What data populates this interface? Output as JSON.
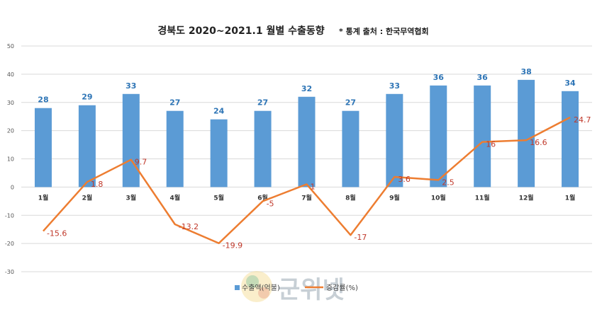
{
  "chart_data": {
    "type": "bar+line",
    "title": "경북도 2020~2021.1 월별 수출동향",
    "source": "* 통계 출처 : 한국무역협회",
    "categories": [
      "1월",
      "2월",
      "3월",
      "4월",
      "5월",
      "6월",
      "7월",
      "8월",
      "9월",
      "10월",
      "11월",
      "12월",
      "1월"
    ],
    "series": [
      {
        "name": "수출액(억불)",
        "type": "bar",
        "color": "#5b9bd5",
        "values": [
          28,
          29,
          33,
          27,
          24,
          27,
          32,
          27,
          33,
          36,
          36,
          38,
          34
        ],
        "labels": [
          "28",
          "29",
          "33",
          "27",
          "24",
          "27",
          "32",
          "27",
          "33",
          "36",
          "36",
          "38",
          "34"
        ]
      },
      {
        "name": "증감률(%)",
        "type": "line",
        "color": "#ed7d31",
        "values": [
          -15.6,
          1.8,
          9.7,
          -13.2,
          -19.9,
          -5,
          1,
          -17,
          3.6,
          2.5,
          16,
          16.6,
          24.7
        ],
        "labels": [
          "-15.6",
          "1.8",
          "9.7",
          "-13.2",
          "-19.9",
          "-5",
          "1",
          "-17",
          "3.6",
          "2.5",
          "16",
          "16.6",
          "24.7"
        ]
      }
    ],
    "yticks": [
      "50",
      "40",
      "30",
      "20",
      "10",
      "0",
      "-10",
      "-20",
      "-30"
    ],
    "ylim": [
      -30,
      50
    ],
    "grid": true,
    "legend": "bottom-center",
    "watermark": "군위넷"
  }
}
